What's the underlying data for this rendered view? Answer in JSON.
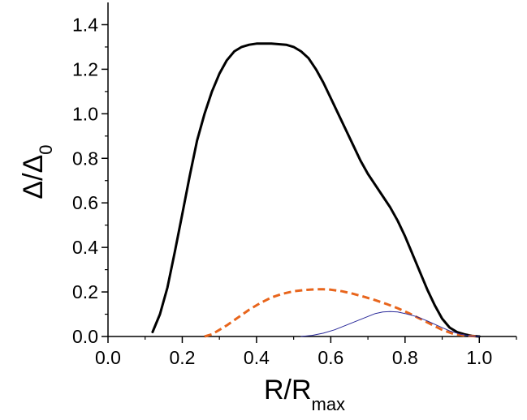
{
  "chart_data": {
    "type": "line",
    "title": "",
    "xlabel": {
      "main": "R/R",
      "sub": "max"
    },
    "ylabel": {
      "main": "Δ/Δ",
      "sub": "0"
    },
    "xlim": [
      0.0,
      1.1
    ],
    "ylim": [
      0.0,
      1.5
    ],
    "x_ticks": [
      "0.0",
      "0.2",
      "0.4",
      "0.6",
      "0.8",
      "1.0"
    ],
    "y_ticks": [
      "0.0",
      "0.2",
      "0.4",
      "0.6",
      "0.8",
      "1.0",
      "1.2",
      "1.4"
    ],
    "grid": false,
    "legend": "none",
    "series": [
      {
        "style": "solid-thick",
        "color": "#000000",
        "points": [
          [
            0.12,
            0.02
          ],
          [
            0.14,
            0.1
          ],
          [
            0.16,
            0.22
          ],
          [
            0.18,
            0.38
          ],
          [
            0.2,
            0.55
          ],
          [
            0.22,
            0.72
          ],
          [
            0.24,
            0.88
          ],
          [
            0.26,
            1.0
          ],
          [
            0.28,
            1.1
          ],
          [
            0.3,
            1.18
          ],
          [
            0.32,
            1.24
          ],
          [
            0.34,
            1.28
          ],
          [
            0.36,
            1.3
          ],
          [
            0.38,
            1.31
          ],
          [
            0.4,
            1.315
          ],
          [
            0.44,
            1.315
          ],
          [
            0.48,
            1.31
          ],
          [
            0.5,
            1.3
          ],
          [
            0.52,
            1.28
          ],
          [
            0.54,
            1.25
          ],
          [
            0.56,
            1.2
          ],
          [
            0.58,
            1.14
          ],
          [
            0.6,
            1.07
          ],
          [
            0.62,
            1.0
          ],
          [
            0.64,
            0.93
          ],
          [
            0.66,
            0.86
          ],
          [
            0.68,
            0.79
          ],
          [
            0.7,
            0.73
          ],
          [
            0.72,
            0.68
          ],
          [
            0.74,
            0.63
          ],
          [
            0.76,
            0.58
          ],
          [
            0.78,
            0.52
          ],
          [
            0.8,
            0.45
          ],
          [
            0.82,
            0.37
          ],
          [
            0.84,
            0.29
          ],
          [
            0.86,
            0.21
          ],
          [
            0.88,
            0.14
          ],
          [
            0.9,
            0.08
          ],
          [
            0.92,
            0.04
          ],
          [
            0.94,
            0.02
          ],
          [
            0.96,
            0.01
          ],
          [
            0.98,
            0.003
          ],
          [
            1.0,
            0.0
          ]
        ]
      },
      {
        "style": "dashed",
        "color": "#e8651c",
        "points": [
          [
            0.26,
            0.0
          ],
          [
            0.28,
            0.01
          ],
          [
            0.3,
            0.03
          ],
          [
            0.32,
            0.05
          ],
          [
            0.35,
            0.085
          ],
          [
            0.38,
            0.12
          ],
          [
            0.41,
            0.15
          ],
          [
            0.44,
            0.175
          ],
          [
            0.47,
            0.192
          ],
          [
            0.5,
            0.203
          ],
          [
            0.53,
            0.209
          ],
          [
            0.56,
            0.212
          ],
          [
            0.58,
            0.212
          ],
          [
            0.6,
            0.21
          ],
          [
            0.63,
            0.203
          ],
          [
            0.66,
            0.192
          ],
          [
            0.69,
            0.178
          ],
          [
            0.72,
            0.163
          ],
          [
            0.75,
            0.146
          ],
          [
            0.78,
            0.127
          ],
          [
            0.81,
            0.105
          ],
          [
            0.84,
            0.08
          ],
          [
            0.87,
            0.055
          ],
          [
            0.9,
            0.03
          ],
          [
            0.93,
            0.012
          ],
          [
            0.96,
            0.004
          ],
          [
            1.0,
            0.0
          ]
        ]
      },
      {
        "style": "solid-thin",
        "color": "#2a2a9a",
        "points": [
          [
            0.52,
            0.0
          ],
          [
            0.55,
            0.005
          ],
          [
            0.58,
            0.015
          ],
          [
            0.61,
            0.03
          ],
          [
            0.64,
            0.05
          ],
          [
            0.67,
            0.07
          ],
          [
            0.7,
            0.09
          ],
          [
            0.72,
            0.103
          ],
          [
            0.74,
            0.11
          ],
          [
            0.76,
            0.112
          ],
          [
            0.78,
            0.11
          ],
          [
            0.8,
            0.103
          ],
          [
            0.83,
            0.09
          ],
          [
            0.86,
            0.07
          ],
          [
            0.89,
            0.047
          ],
          [
            0.92,
            0.025
          ],
          [
            0.95,
            0.01
          ],
          [
            0.98,
            0.002
          ],
          [
            1.0,
            0.0
          ]
        ]
      }
    ]
  }
}
